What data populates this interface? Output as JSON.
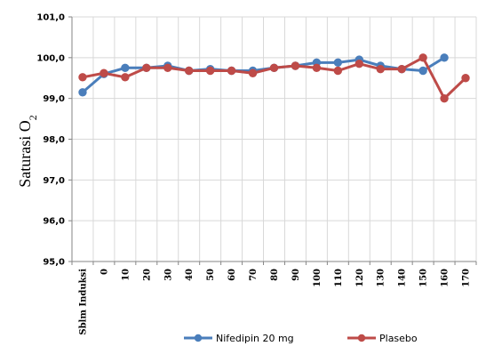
{
  "chart_data": {
    "type": "line",
    "ylabel": "Saturasi O2",
    "ylabel_main": "Saturasi O",
    "ylabel_sub": "2",
    "ylim": [
      95.0,
      101.0
    ],
    "y_ticks": [
      "95,0",
      "96,0",
      "97,0",
      "98,0",
      "99,0",
      "100,0",
      "101,0"
    ],
    "grid": true,
    "legend_position": "bottom",
    "categories": [
      "Sblm Induksi",
      "0",
      "10",
      "20",
      "30",
      "40",
      "50",
      "60",
      "70",
      "80",
      "90",
      "100",
      "110",
      "120",
      "130",
      "140",
      "150",
      "160",
      "170"
    ],
    "series": [
      {
        "name": "Nifedipin 20 mg",
        "color": "#4a7ebb",
        "values": [
          99.15,
          99.6,
          99.75,
          99.75,
          99.8,
          99.68,
          99.72,
          99.68,
          99.68,
          99.75,
          99.8,
          99.88,
          99.88,
          99.95,
          99.8,
          99.72,
          99.68,
          100.0,
          null
        ]
      },
      {
        "name": "Plasebo",
        "color": "#be4b48",
        "values": [
          99.52,
          99.62,
          99.52,
          99.75,
          99.75,
          99.68,
          99.68,
          99.68,
          99.62,
          99.75,
          99.8,
          99.75,
          99.68,
          99.85,
          99.72,
          99.72,
          100.0,
          99.0,
          99.5
        ]
      }
    ]
  }
}
